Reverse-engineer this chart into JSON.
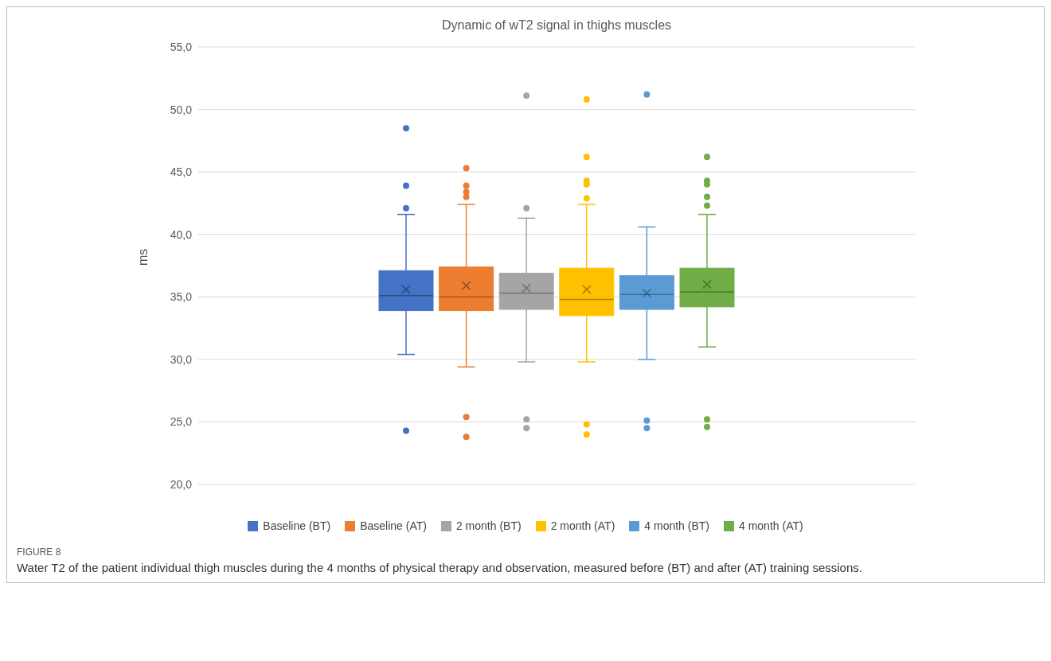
{
  "chart_data": {
    "type": "box",
    "title": "Dynamic of wT2 signal in thighs muscles",
    "ylabel": "ms",
    "categories": [
      null
    ],
    "ylim": [
      20,
      55
    ],
    "yticks": [
      {
        "value": 20,
        "label": "20,0"
      },
      {
        "value": 25,
        "label": "25,0"
      },
      {
        "value": 30,
        "label": "30,0"
      },
      {
        "value": 35,
        "label": "35,0"
      },
      {
        "value": 40,
        "label": "40,0"
      },
      {
        "value": 45,
        "label": "45,0"
      },
      {
        "value": 50,
        "label": "50,0"
      },
      {
        "value": 55,
        "label": "55,0"
      }
    ],
    "grid": "y",
    "legend": "bottom",
    "series": [
      {
        "name": "Baseline (BT)",
        "color": "#4472c4",
        "boxes": [
          {
            "low": 30.4,
            "q1": 33.9,
            "median": 35.1,
            "q3": 37.1,
            "high": 41.6,
            "mean": 35.6,
            "outliers": [
              48.5,
              43.9,
              42.1,
              24.3
            ]
          }
        ]
      },
      {
        "name": "Baseline (AT)",
        "color": "#ed7d31",
        "boxes": [
          {
            "low": 29.4,
            "q1": 33.9,
            "median": 35.0,
            "q3": 37.4,
            "high": 42.4,
            "mean": 35.9,
            "outliers": [
              45.3,
              43.9,
              43.4,
              43.0,
              25.4,
              23.8
            ]
          }
        ]
      },
      {
        "name": "2 month (BT)",
        "color": "#a5a5a5",
        "boxes": [
          {
            "low": 29.8,
            "q1": 34.0,
            "median": 35.3,
            "q3": 36.9,
            "high": 41.3,
            "mean": 35.7,
            "outliers": [
              51.1,
              42.1,
              25.2,
              24.5
            ]
          }
        ]
      },
      {
        "name": "2 month (AT)",
        "color": "#ffc000",
        "boxes": [
          {
            "low": 29.8,
            "q1": 33.5,
            "median": 34.8,
            "q3": 37.3,
            "high": 42.4,
            "mean": 35.6,
            "outliers": [
              50.8,
              46.2,
              44.3,
              44.0,
              42.9,
              24.8,
              24.0
            ]
          }
        ]
      },
      {
        "name": "4 month (BT)",
        "color": "#5b9bd5",
        "boxes": [
          {
            "low": 30.0,
            "q1": 34.0,
            "median": 35.2,
            "q3": 36.7,
            "high": 40.6,
            "mean": 35.3,
            "outliers": [
              51.2,
              25.1,
              24.5
            ]
          }
        ]
      },
      {
        "name": "4 month (AT)",
        "color": "#70ad47",
        "boxes": [
          {
            "low": 31.0,
            "q1": 34.2,
            "median": 35.4,
            "q3": 37.3,
            "high": 41.6,
            "mean": 36.0,
            "outliers": [
              46.2,
              44.3,
              44.0,
              43.0,
              42.3,
              25.2,
              24.6
            ]
          }
        ]
      }
    ],
    "annotations": [
      "FIGURE 8",
      "Water T2 of the patient individual thigh muscles during the 4 months of physical therapy and observation, measured before (BT) and after (AT) training sessions."
    ]
  }
}
